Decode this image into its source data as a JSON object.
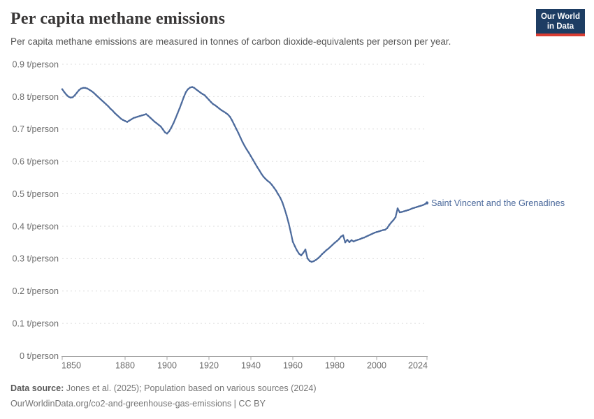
{
  "header": {
    "title": "Per capita methane emissions",
    "subtitle": "Per capita methane emissions are measured in tonnes of carbon dioxide-equivalents per person per year.",
    "logo": {
      "line1": "Our World",
      "line2": "in Data"
    }
  },
  "chart_data": {
    "type": "line",
    "title": "Per capita methane emissions",
    "entity": "Saint Vincent and the Grenadines",
    "unit": "t/person",
    "xlim": [
      1850,
      2024
    ],
    "ylim": [
      0,
      0.9
    ],
    "grid": "horizontal-dashed",
    "legend_position": "end-of-line-label",
    "x_ticks": [
      1850,
      1880,
      1900,
      1920,
      1940,
      1960,
      1980,
      2000,
      2024
    ],
    "x_tick_labels": [
      "1850",
      "1880",
      "1900",
      "1920",
      "1940",
      "1960",
      "1980",
      "2000",
      "2024"
    ],
    "y_ticks": [
      0,
      0.1,
      0.2,
      0.3,
      0.4,
      0.5,
      0.6,
      0.7,
      0.8,
      0.9
    ],
    "y_tick_labels": [
      "0 t/person",
      "0.1 t/person",
      "0.2 t/person",
      "0.3 t/person",
      "0.4 t/person",
      "0.5 t/person",
      "0.6 t/person",
      "0.7 t/person",
      "0.8 t/person",
      "0.9 t/person"
    ],
    "x_start_year": 1850,
    "values": [
      0.823,
      0.814,
      0.806,
      0.8,
      0.797,
      0.798,
      0.804,
      0.812,
      0.82,
      0.825,
      0.827,
      0.827,
      0.825,
      0.821,
      0.817,
      0.812,
      0.806,
      0.8,
      0.794,
      0.788,
      0.782,
      0.776,
      0.77,
      0.763,
      0.757,
      0.75,
      0.744,
      0.738,
      0.732,
      0.728,
      0.725,
      0.722,
      0.726,
      0.73,
      0.734,
      0.736,
      0.738,
      0.74,
      0.742,
      0.744,
      0.746,
      0.741,
      0.735,
      0.729,
      0.723,
      0.718,
      0.713,
      0.708,
      0.699,
      0.69,
      0.686,
      0.693,
      0.704,
      0.717,
      0.732,
      0.748,
      0.764,
      0.781,
      0.799,
      0.814,
      0.823,
      0.828,
      0.83,
      0.827,
      0.822,
      0.817,
      0.812,
      0.808,
      0.804,
      0.797,
      0.79,
      0.783,
      0.777,
      0.773,
      0.768,
      0.763,
      0.758,
      0.754,
      0.75,
      0.745,
      0.738,
      0.727,
      0.714,
      0.701,
      0.688,
      0.674,
      0.66,
      0.648,
      0.637,
      0.627,
      0.616,
      0.605,
      0.594,
      0.583,
      0.573,
      0.562,
      0.553,
      0.546,
      0.54,
      0.535,
      0.528,
      0.519,
      0.51,
      0.499,
      0.488,
      0.474,
      0.455,
      0.434,
      0.41,
      0.382,
      0.352,
      0.338,
      0.325,
      0.315,
      0.31,
      0.318,
      0.328,
      0.301,
      0.293,
      0.29,
      0.292,
      0.296,
      0.301,
      0.307,
      0.314,
      0.32,
      0.326,
      0.331,
      0.337,
      0.343,
      0.349,
      0.354,
      0.36,
      0.368,
      0.372,
      0.35,
      0.358,
      0.351,
      0.357,
      0.353,
      0.356,
      0.358,
      0.36,
      0.363,
      0.365,
      0.368,
      0.371,
      0.374,
      0.377,
      0.38,
      0.382,
      0.384,
      0.386,
      0.388,
      0.389,
      0.394,
      0.404,
      0.412,
      0.419,
      0.428,
      0.455,
      0.443,
      0.444,
      0.446,
      0.448,
      0.45,
      0.452,
      0.455,
      0.457,
      0.459,
      0.461,
      0.463,
      0.465,
      0.468,
      0.472
    ]
  },
  "colors": {
    "line": "#4C6A9C",
    "entity_label": "#4C6A9C",
    "grid": "#dcdcdc",
    "axis": "#a7a7a7",
    "tick_text": "#6e6e6e",
    "title_text": "#383636",
    "subtitle_text": "#565656",
    "footer_text": "#757575",
    "logo_bg": "#1d3d63",
    "logo_accent": "#d93d32"
  },
  "footer": {
    "source_label": "Data source:",
    "source_text": " Jones et al. (2025); Population based on various sources (2024)",
    "license_line": "OurWorldinData.org/co2-and-greenhouse-gas-emissions | CC BY"
  }
}
